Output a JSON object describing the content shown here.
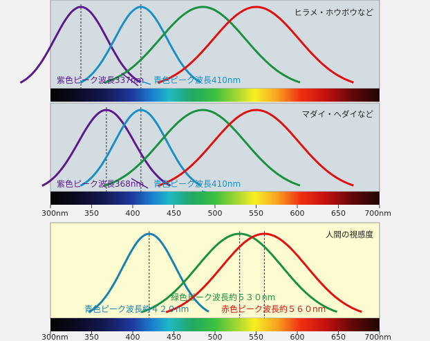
{
  "chart_data": [
    {
      "type": "line",
      "title": "ヒラメ・ホウボウなど",
      "xlim": [
        300,
        700
      ],
      "series": [
        {
          "name": "紫",
          "color": "#5a1a8c",
          "peak": 337,
          "sigma": 32
        },
        {
          "name": "青",
          "color": "#1a8fc4",
          "peak": 410,
          "sigma": 32
        },
        {
          "name": "緑",
          "color": "#1a9040",
          "peak": 485,
          "sigma": 52
        },
        {
          "name": "赤",
          "color": "#e01010",
          "peak": 550,
          "sigma": 52
        }
      ],
      "peak_lines": [
        337,
        410
      ],
      "annotations": [
        {
          "text": "紫色ピーク波長337nm",
          "color": "#5a1a8c"
        },
        {
          "text": "青色ピーク波長410nm",
          "color": "#1a8fc4"
        }
      ]
    },
    {
      "type": "line",
      "title": "マダイ・ヘダイなど",
      "xlim": [
        300,
        700
      ],
      "series": [
        {
          "name": "紫",
          "color": "#5a1a8c",
          "peak": 368,
          "sigma": 34
        },
        {
          "name": "青",
          "color": "#1a8fc4",
          "peak": 410,
          "sigma": 32
        },
        {
          "name": "緑",
          "color": "#1a9040",
          "peak": 485,
          "sigma": 52
        },
        {
          "name": "赤",
          "color": "#e01010",
          "peak": 550,
          "sigma": 52
        }
      ],
      "peak_lines": [
        368,
        410
      ],
      "annotations": [
        {
          "text": "紫色ピーク波長368nm",
          "color": "#5a1a8c"
        },
        {
          "text": "青色ピーク波長410nm",
          "color": "#1a8fc4"
        }
      ]
    },
    {
      "type": "line",
      "title": "人間の視感度",
      "xlim": [
        300,
        700
      ],
      "series": [
        {
          "name": "青",
          "color": "#1a80b0",
          "peak": 420,
          "sigma": 32
        },
        {
          "name": "緑",
          "color": "#1a9040",
          "peak": 530,
          "sigma": 52
        },
        {
          "name": "赤",
          "color": "#e01010",
          "peak": 560,
          "sigma": 52
        }
      ],
      "peak_lines": [
        420,
        530,
        560
      ],
      "annotations": [
        {
          "text": "緑色ピーク波長約５３０nm",
          "color": "#1a9040"
        },
        {
          "text": "青色ピーク波長約４２０nm",
          "color": "#1a80b0"
        },
        {
          "text": "赤色ピーク波長約５６０nm",
          "color": "#e01010"
        }
      ]
    }
  ],
  "axis_ticks": [
    "300nm",
    "350",
    "400",
    "450",
    "500",
    "550",
    "600",
    "650",
    "700nm"
  ]
}
